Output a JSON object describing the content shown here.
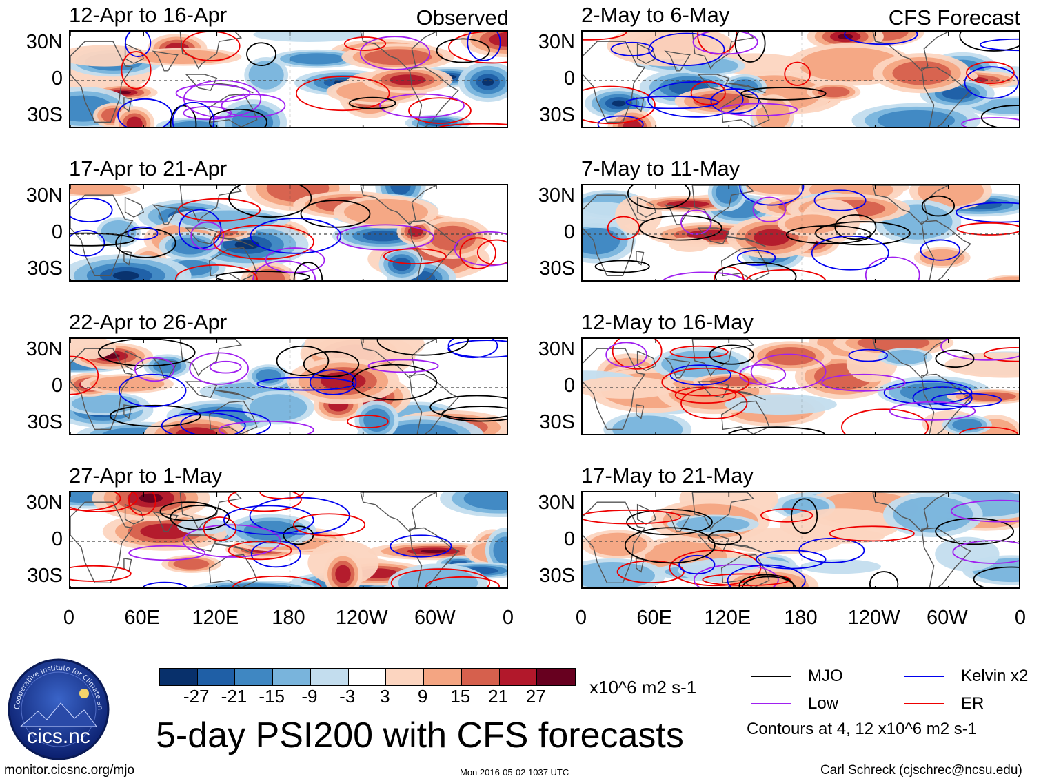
{
  "figure": {
    "title": "5-day PSI200 with CFS forecasts",
    "left_label": "Observed",
    "right_label": "CFS Forecast",
    "website": "monitor.cicsnc.org/mjo",
    "timestamp": "Mon 2016-05-02 1037 UTC",
    "author": "Carl Schreck (cjschrec@ncsu.edu)",
    "units": "x10^6 m2 s-1",
    "contours_note": "Contours at 4, 12 x10^6 m2 s-1",
    "logo": {
      "text": "cics.nc",
      "ring_text": "Cooperative Institute for Climate and Satellites"
    }
  },
  "chart_data": {
    "type": "heatmap",
    "variable": "200-hPa streamfunction anomaly (PSI200)",
    "x_ticks": [
      "0",
      "60E",
      "120E",
      "180",
      "120W",
      "60W",
      "0"
    ],
    "y_ticks": [
      "30N",
      "0",
      "30S"
    ],
    "xlim": [
      0,
      360
    ],
    "ylim": [
      -40,
      40
    ],
    "panels": [
      {
        "title": "12-Apr to 16-Apr",
        "kind": "observed"
      },
      {
        "title": "17-Apr to 21-Apr",
        "kind": "observed"
      },
      {
        "title": "22-Apr to 26-Apr",
        "kind": "observed"
      },
      {
        "title": "27-Apr to 1-May",
        "kind": "observed"
      },
      {
        "title": "2-May to 6-May",
        "kind": "forecast"
      },
      {
        "title": "7-May to 11-May",
        "kind": "forecast"
      },
      {
        "title": "12-May to 16-May",
        "kind": "forecast"
      },
      {
        "title": "17-May to 21-May",
        "kind": "forecast"
      }
    ],
    "colorbar": {
      "ticks": [
        "-27",
        "-21",
        "-15",
        "-9",
        "-3",
        "3",
        "9",
        "15",
        "21",
        "27"
      ],
      "colors": [
        "#08306b",
        "#1f5fa6",
        "#3f87c2",
        "#79b4dc",
        "#c3ddee",
        "#ffffff",
        "#fcd5c0",
        "#f4a582",
        "#d6604d",
        "#b2182b",
        "#67001f"
      ]
    },
    "legend": [
      {
        "label": "MJO",
        "color": "#000000"
      },
      {
        "label": "Kelvin x2",
        "color": "#0000ee"
      },
      {
        "label": "Low",
        "color": "#a020f0"
      },
      {
        "label": "ER",
        "color": "#ee0000"
      }
    ]
  }
}
